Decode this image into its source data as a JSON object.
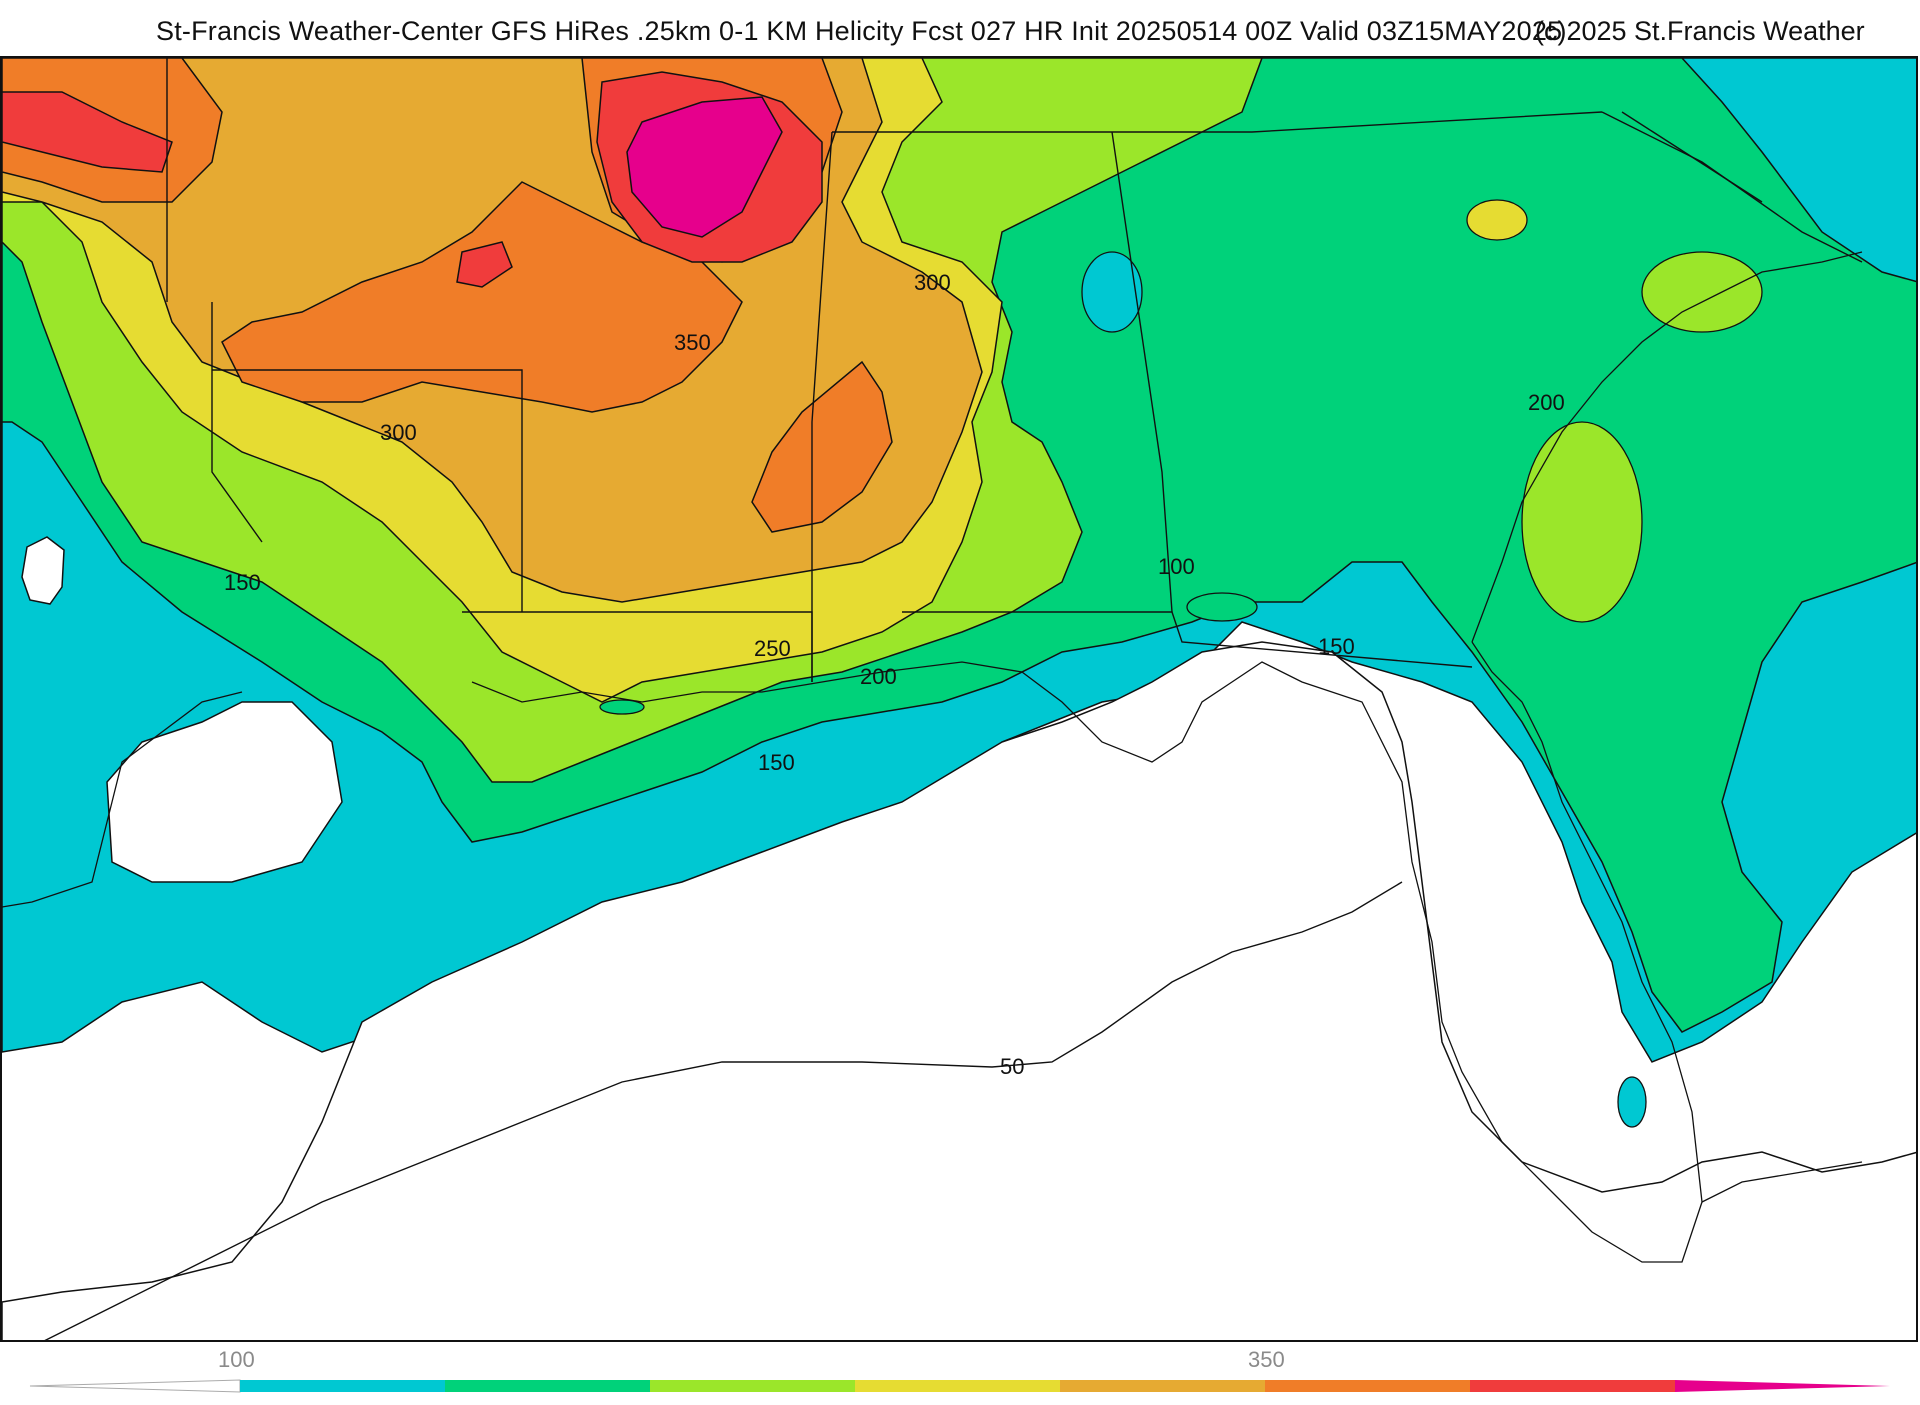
{
  "header": {
    "title": "St-Francis Weather-Center GFS HiRes .25km 0-1 KM Helicity Fcst 027 HR Init 20250514 00Z  Valid 03Z15MAY2025",
    "copyright": "(c)2025 St.Francis Weather"
  },
  "map": {
    "contour_labels": [
      {
        "id": "c350",
        "text": "350"
      },
      {
        "id": "c300a",
        "text": "300"
      },
      {
        "id": "c300b",
        "text": "300"
      },
      {
        "id": "c250",
        "text": "250"
      },
      {
        "id": "c200a",
        "text": "200"
      },
      {
        "id": "c200b",
        "text": "200"
      },
      {
        "id": "c150a",
        "text": "150"
      },
      {
        "id": "c150b",
        "text": "150"
      },
      {
        "id": "c150c",
        "text": "150"
      },
      {
        "id": "c100",
        "text": "100"
      },
      {
        "id": "c50",
        "text": "50"
      }
    ]
  },
  "colorbar": {
    "ticks": [
      "100",
      "350"
    ],
    "colors": [
      "#00c8d2",
      "#00d27a",
      "#9be62a",
      "#e6dc32",
      "#e6aa32",
      "#f07d28",
      "#f03c3c",
      "#e6008c"
    ]
  }
}
